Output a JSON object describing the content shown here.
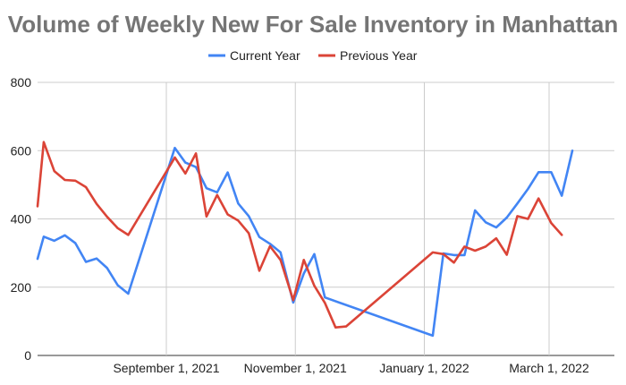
{
  "chart_data": {
    "type": "line",
    "title": "Volume of Weekly New For Sale Inventory in Manhattan",
    "xlabel": "",
    "ylabel": "",
    "ylim": [
      0,
      800
    ],
    "y_ticks": [
      "0",
      "200",
      "400",
      "600",
      "800"
    ],
    "x_ticks": [
      {
        "date": "2021-09-01",
        "label": "September 1, 2021"
      },
      {
        "date": "2021-11-01",
        "label": "November 1, 2021"
      },
      {
        "date": "2022-01-01",
        "label": "January 1, 2022"
      },
      {
        "date": "2022-03-01",
        "label": "March 1, 2022"
      }
    ],
    "grid": "vertical at x ticks, horizontal at y ticks",
    "legend_position": "top",
    "x": [
      "2021-07-01",
      "2021-07-05",
      "2021-07-10",
      "2021-07-15",
      "2021-07-20",
      "2021-07-25",
      "2021-07-30",
      "2021-08-04",
      "2021-08-09",
      "2021-08-14",
      "2021-08-19",
      "2021-08-24",
      "2021-08-31",
      "2021-09-05",
      "2021-09-10",
      "2021-09-15",
      "2021-09-20",
      "2021-09-25",
      "2021-09-30",
      "2021-10-05",
      "2021-10-10",
      "2021-10-15",
      "2021-10-20",
      "2021-10-25",
      "2021-10-31",
      "2021-11-05",
      "2021-11-10",
      "2021-11-15",
      "2021-11-20",
      "2021-11-25",
      "2021-11-30",
      "2021-12-05",
      "2021-12-10",
      "2021-12-15",
      "2021-12-20",
      "2021-12-25",
      "2021-12-31",
      "2022-01-05",
      "2022-01-10",
      "2022-01-15",
      "2022-01-20",
      "2022-01-25",
      "2022-01-30",
      "2022-02-04",
      "2022-02-09",
      "2022-02-14",
      "2022-02-19",
      "2022-02-24",
      "2022-03-02",
      "2022-03-07",
      "2022-03-12",
      "2022-03-17",
      "2022-03-22",
      "2022-03-27",
      "2022-04-01"
    ],
    "series": [
      {
        "name": "Current Year",
        "color": "#4285f4",
        "values": [
          283,
          348,
          336,
          352,
          329,
          274,
          284,
          256,
          206,
          181,
          null,
          null,
          null,
          608,
          565,
          552,
          490,
          478,
          536,
          445,
          408,
          347,
          327,
          302,
          155,
          240,
          297,
          170,
          null,
          null,
          null,
          null,
          null,
          null,
          null,
          null,
          null,
          58,
          299,
          294,
          294,
          425,
          390,
          375,
          404,
          445,
          488,
          537,
          537,
          468,
          600,
          null,
          null,
          null,
          null
        ],
        "values_note": ""
      },
      {
        "name": "Previous Year",
        "color": "#db4437",
        "values": [
          437,
          625,
          540,
          514,
          512,
          493,
          444,
          406,
          373,
          353,
          null,
          null,
          null,
          580,
          533,
          592,
          407,
          470,
          413,
          395,
          358,
          248,
          320,
          280,
          162,
          280,
          204,
          154,
          82,
          85,
          null,
          null,
          null,
          null,
          null,
          null,
          null,
          302,
          297,
          272,
          319,
          307,
          319,
          343,
          295,
          408,
          400,
          460,
          388,
          353,
          null,
          null,
          null,
          null,
          null
        ],
        "values_note": ""
      }
    ]
  },
  "legend": {
    "current_label": "Current Year",
    "previous_label": "Previous Year"
  }
}
